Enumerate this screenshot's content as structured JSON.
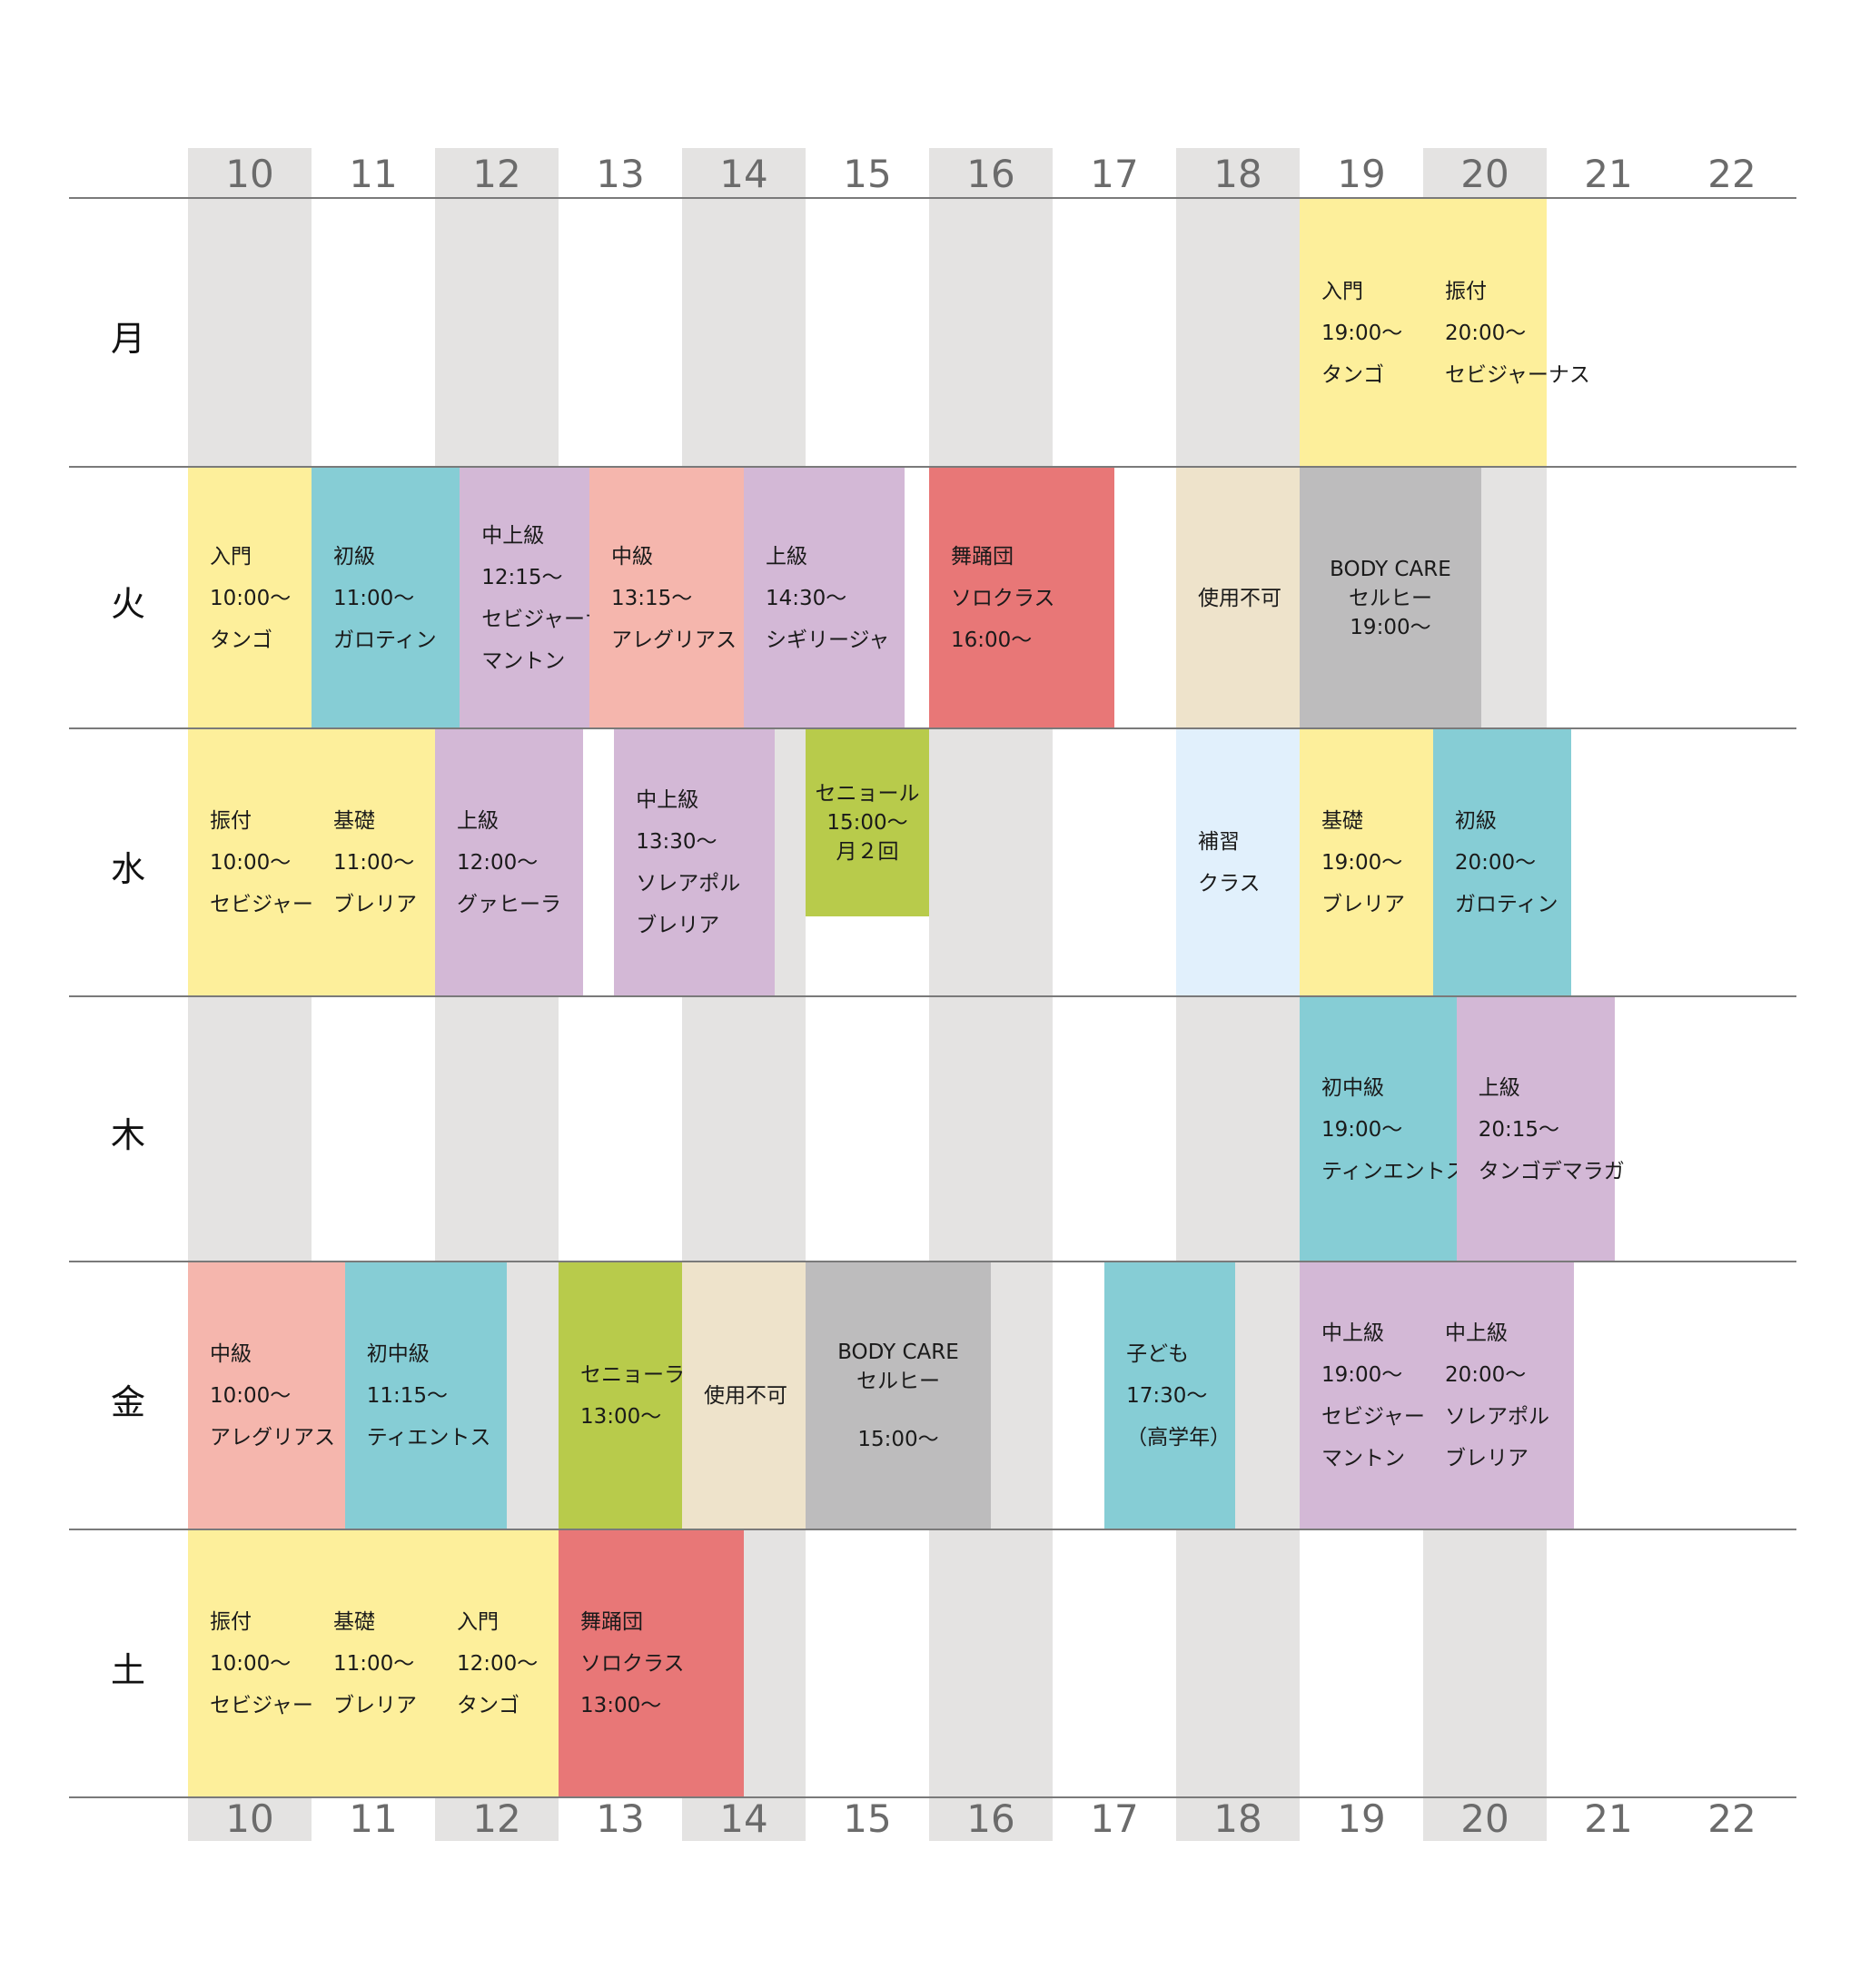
{
  "hours": [
    "10",
    "11",
    "12",
    "13",
    "14",
    "15",
    "16",
    "17",
    "18",
    "19",
    "20",
    "21",
    "22"
  ],
  "days": [
    "月",
    "火",
    "水",
    "木",
    "金",
    "土"
  ],
  "colors": {
    "stripe": "#e4e3e2",
    "yellow": "#fdef9b",
    "teal": "#86cdd5",
    "lavender": "#d3b8d6",
    "salmon": "#f5b6ad",
    "red": "#e87777",
    "beige": "#eee3cb",
    "gray": "#bdbcbd",
    "lightblue": "#e1f0fc",
    "green": "#b8cb4b"
  },
  "classes": [
    {
      "day": "月",
      "start": 19,
      "end": 20,
      "color": "yellow",
      "lines": [
        "入門",
        "19:00〜",
        "タンゴ"
      ]
    },
    {
      "day": "月",
      "start": 20,
      "end": 21,
      "color": "yellow",
      "lines": [
        "振付",
        "20:00〜",
        "セビジャーナス"
      ]
    },
    {
      "day": "火",
      "start": 10,
      "end": 11,
      "color": "yellow",
      "lines": [
        "入門",
        "10:00〜",
        "タンゴ"
      ]
    },
    {
      "day": "火",
      "start": 11,
      "end": 12.2,
      "color": "teal",
      "lines": [
        "初級",
        "11:00〜",
        "ガロティン"
      ]
    },
    {
      "day": "火",
      "start": 12.2,
      "end": 13.25,
      "color": "lavender",
      "lines": [
        "中上級",
        "12:15〜",
        "セビジャーナス",
        "マントン"
      ]
    },
    {
      "day": "火",
      "start": 13.25,
      "end": 14.5,
      "color": "salmon",
      "lines": [
        "中級",
        "13:15〜",
        "アレグリアス"
      ]
    },
    {
      "day": "火",
      "start": 14.5,
      "end": 15.8,
      "color": "lavender",
      "lines": [
        "上級",
        "14:30〜",
        "シギリージャ"
      ]
    },
    {
      "day": "火",
      "start": 16,
      "end": 17.5,
      "color": "red",
      "lines": [
        "舞踊団",
        "ソロクラス",
        "16:00〜"
      ]
    },
    {
      "day": "火",
      "start": 18,
      "end": 19,
      "color": "beige",
      "lines": [
        "使用不可"
      ]
    },
    {
      "day": "火",
      "start": 19,
      "end": 20.47,
      "color": "gray",
      "lines": [
        "BODY CARE",
        "セルヒー",
        "19:00〜"
      ],
      "tight": true
    },
    {
      "day": "水",
      "start": 10,
      "end": 11,
      "color": "yellow",
      "lines": [
        "振付",
        "10:00〜",
        "セビジャーナス"
      ]
    },
    {
      "day": "水",
      "start": 11,
      "end": 12,
      "color": "yellow",
      "lines": [
        "基礎",
        "11:00〜",
        "ブレリア"
      ]
    },
    {
      "day": "水",
      "start": 12,
      "end": 13.2,
      "color": "lavender",
      "lines": [
        "上級",
        "12:00〜",
        "グァヒーラ"
      ]
    },
    {
      "day": "水",
      "start": 13.45,
      "end": 14.75,
      "color": "lavender",
      "lines": [
        "中上級",
        "13:30〜",
        "ソレアポル",
        "ブレリア"
      ]
    },
    {
      "day": "水",
      "start": 15,
      "end": 16,
      "color": "green",
      "lines": [
        "セニョール",
        "15:00〜",
        "月２回"
      ],
      "tight": true,
      "short": true
    },
    {
      "day": "水",
      "start": 18,
      "end": 19,
      "color": "lightblue",
      "lines": [
        "補習",
        "クラス"
      ]
    },
    {
      "day": "水",
      "start": 19,
      "end": 20.08,
      "color": "yellow",
      "lines": [
        "基礎",
        "19:00〜",
        "ブレリア"
      ]
    },
    {
      "day": "水",
      "start": 20.08,
      "end": 21.2,
      "color": "teal",
      "lines": [
        "初級",
        "20:00〜",
        "ガロティン"
      ]
    },
    {
      "day": "木",
      "start": 19,
      "end": 20.27,
      "color": "teal",
      "lines": [
        "初中級",
        "19:00〜",
        "ティンエントス"
      ]
    },
    {
      "day": "木",
      "start": 20.27,
      "end": 21.55,
      "color": "lavender",
      "lines": [
        "上級",
        "20:15〜",
        "タンゴデマラガ"
      ]
    },
    {
      "day": "金",
      "start": 10,
      "end": 11.27,
      "color": "salmon",
      "lines": [
        "中級",
        "10:00〜",
        "アレグリアス"
      ]
    },
    {
      "day": "金",
      "start": 11.27,
      "end": 12.58,
      "color": "teal",
      "lines": [
        "初中級",
        "11:15〜",
        "ティエントス"
      ]
    },
    {
      "day": "金",
      "start": 13,
      "end": 14,
      "color": "green",
      "lines": [
        "セニョーラ",
        "13:00〜"
      ]
    },
    {
      "day": "金",
      "start": 14,
      "end": 15,
      "color": "beige",
      "lines": [
        "使用不可"
      ]
    },
    {
      "day": "金",
      "start": 15,
      "end": 16.5,
      "color": "gray",
      "lines": [
        "BODY CARE",
        "セルヒー",
        "",
        "15:00〜"
      ],
      "tight": true
    },
    {
      "day": "金",
      "start": 17.42,
      "end": 18.48,
      "color": "teal",
      "lines": [
        "子ども",
        "17:30〜",
        "（高学年）"
      ]
    },
    {
      "day": "金",
      "start": 19,
      "end": 20,
      "color": "lavender",
      "lines": [
        "中上級",
        "19:00〜",
        "セビジャーナス",
        "マントン"
      ]
    },
    {
      "day": "金",
      "start": 20,
      "end": 21.22,
      "color": "lavender",
      "lines": [
        "中上級",
        "20:00〜",
        "ソレアポル",
        "ブレリア"
      ]
    },
    {
      "day": "土",
      "start": 10,
      "end": 11,
      "color": "yellow",
      "lines": [
        "振付",
        "10:00〜",
        "セビジャーナス"
      ]
    },
    {
      "day": "土",
      "start": 11,
      "end": 12,
      "color": "yellow",
      "lines": [
        "基礎",
        "11:00〜",
        "ブレリア"
      ]
    },
    {
      "day": "土",
      "start": 12,
      "end": 13,
      "color": "yellow",
      "lines": [
        "入門",
        "12:00〜",
        "タンゴ"
      ]
    },
    {
      "day": "土",
      "start": 13,
      "end": 14.5,
      "color": "red",
      "lines": [
        "舞踊団",
        "ソロクラス",
        "13:00〜"
      ]
    }
  ]
}
